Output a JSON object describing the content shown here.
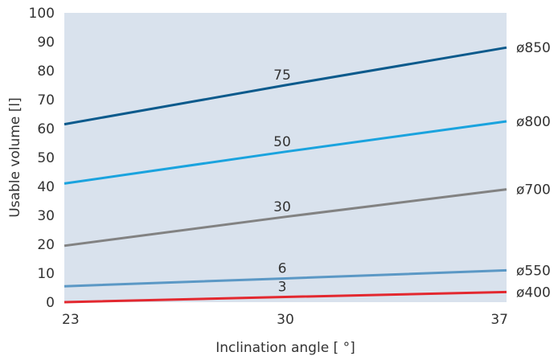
{
  "chart_data": {
    "type": "line",
    "title": "",
    "xlabel": "Inclination angle [ °]",
    "ylabel": "Usable volume [l]",
    "x": [
      23,
      30,
      37
    ],
    "xlim": [
      23,
      37
    ],
    "ylim": [
      0,
      100
    ],
    "x_ticks": [
      "23",
      "30",
      "37"
    ],
    "y_ticks": [
      "0",
      "10",
      "20",
      "30",
      "40",
      "50",
      "60",
      "70",
      "80",
      "90",
      "100"
    ],
    "grid": false,
    "background": "#d9e2ed",
    "series": [
      {
        "name": "ø850",
        "values": [
          61.5,
          75,
          88
        ],
        "label": "75",
        "color": "#0b5a8c"
      },
      {
        "name": "ø800",
        "values": [
          41,
          52,
          62.5
        ],
        "label": "50",
        "color": "#1aa3de"
      },
      {
        "name": "ø700",
        "values": [
          19.5,
          29.5,
          39
        ],
        "label": "30",
        "color": "#828282"
      },
      {
        "name": "ø550",
        "values": [
          5.5,
          8.2,
          11
        ],
        "label": "6",
        "color": "#5b98c5"
      },
      {
        "name": "ø400",
        "values": [
          0,
          1.8,
          3.5
        ],
        "label": "3",
        "color": "#e3282f"
      }
    ]
  }
}
